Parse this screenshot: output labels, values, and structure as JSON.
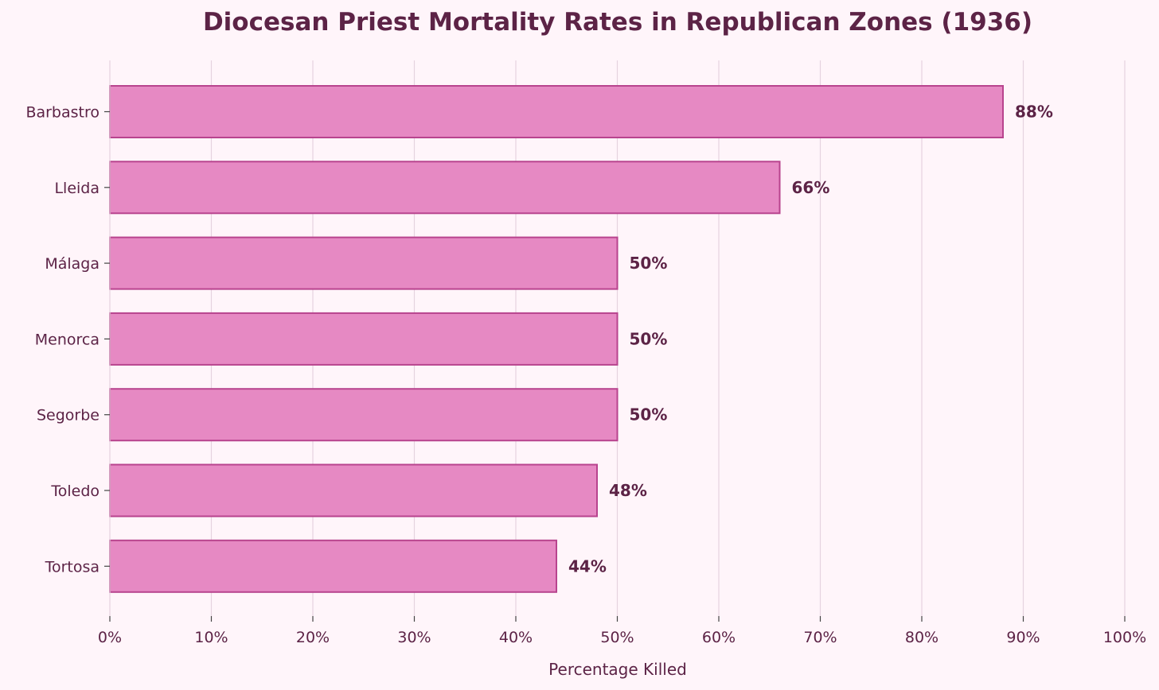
{
  "chart_data": {
    "type": "bar",
    "orientation": "horizontal",
    "title": "Diocesan Priest Mortality Rates in Republican Zones (1936)",
    "xlabel": "Percentage Killed",
    "ylabel": "",
    "categories": [
      "Barbastro",
      "Lleida",
      "Málaga",
      "Menorca",
      "Segorbe",
      "Toledo",
      "Tortosa"
    ],
    "values": [
      88,
      66,
      50,
      50,
      50,
      48,
      44
    ],
    "value_labels": [
      "88%",
      "66%",
      "50%",
      "50%",
      "50%",
      "48%",
      "44%"
    ],
    "xlim": [
      0,
      100
    ],
    "xticks": [
      0,
      10,
      20,
      30,
      40,
      50,
      60,
      70,
      80,
      90,
      100
    ],
    "xtick_labels": [
      "0%",
      "10%",
      "20%",
      "30%",
      "40%",
      "50%",
      "60%",
      "70%",
      "80%",
      "90%",
      "100%"
    ],
    "grid": "vertical",
    "legend": "none",
    "colors": {
      "background": "#fff5fa",
      "bar_fill": "#e689c3",
      "bar_edge": "#b8448e",
      "text": "#5c2346",
      "grid": "#e6d3df",
      "axis": "#444444"
    }
  }
}
